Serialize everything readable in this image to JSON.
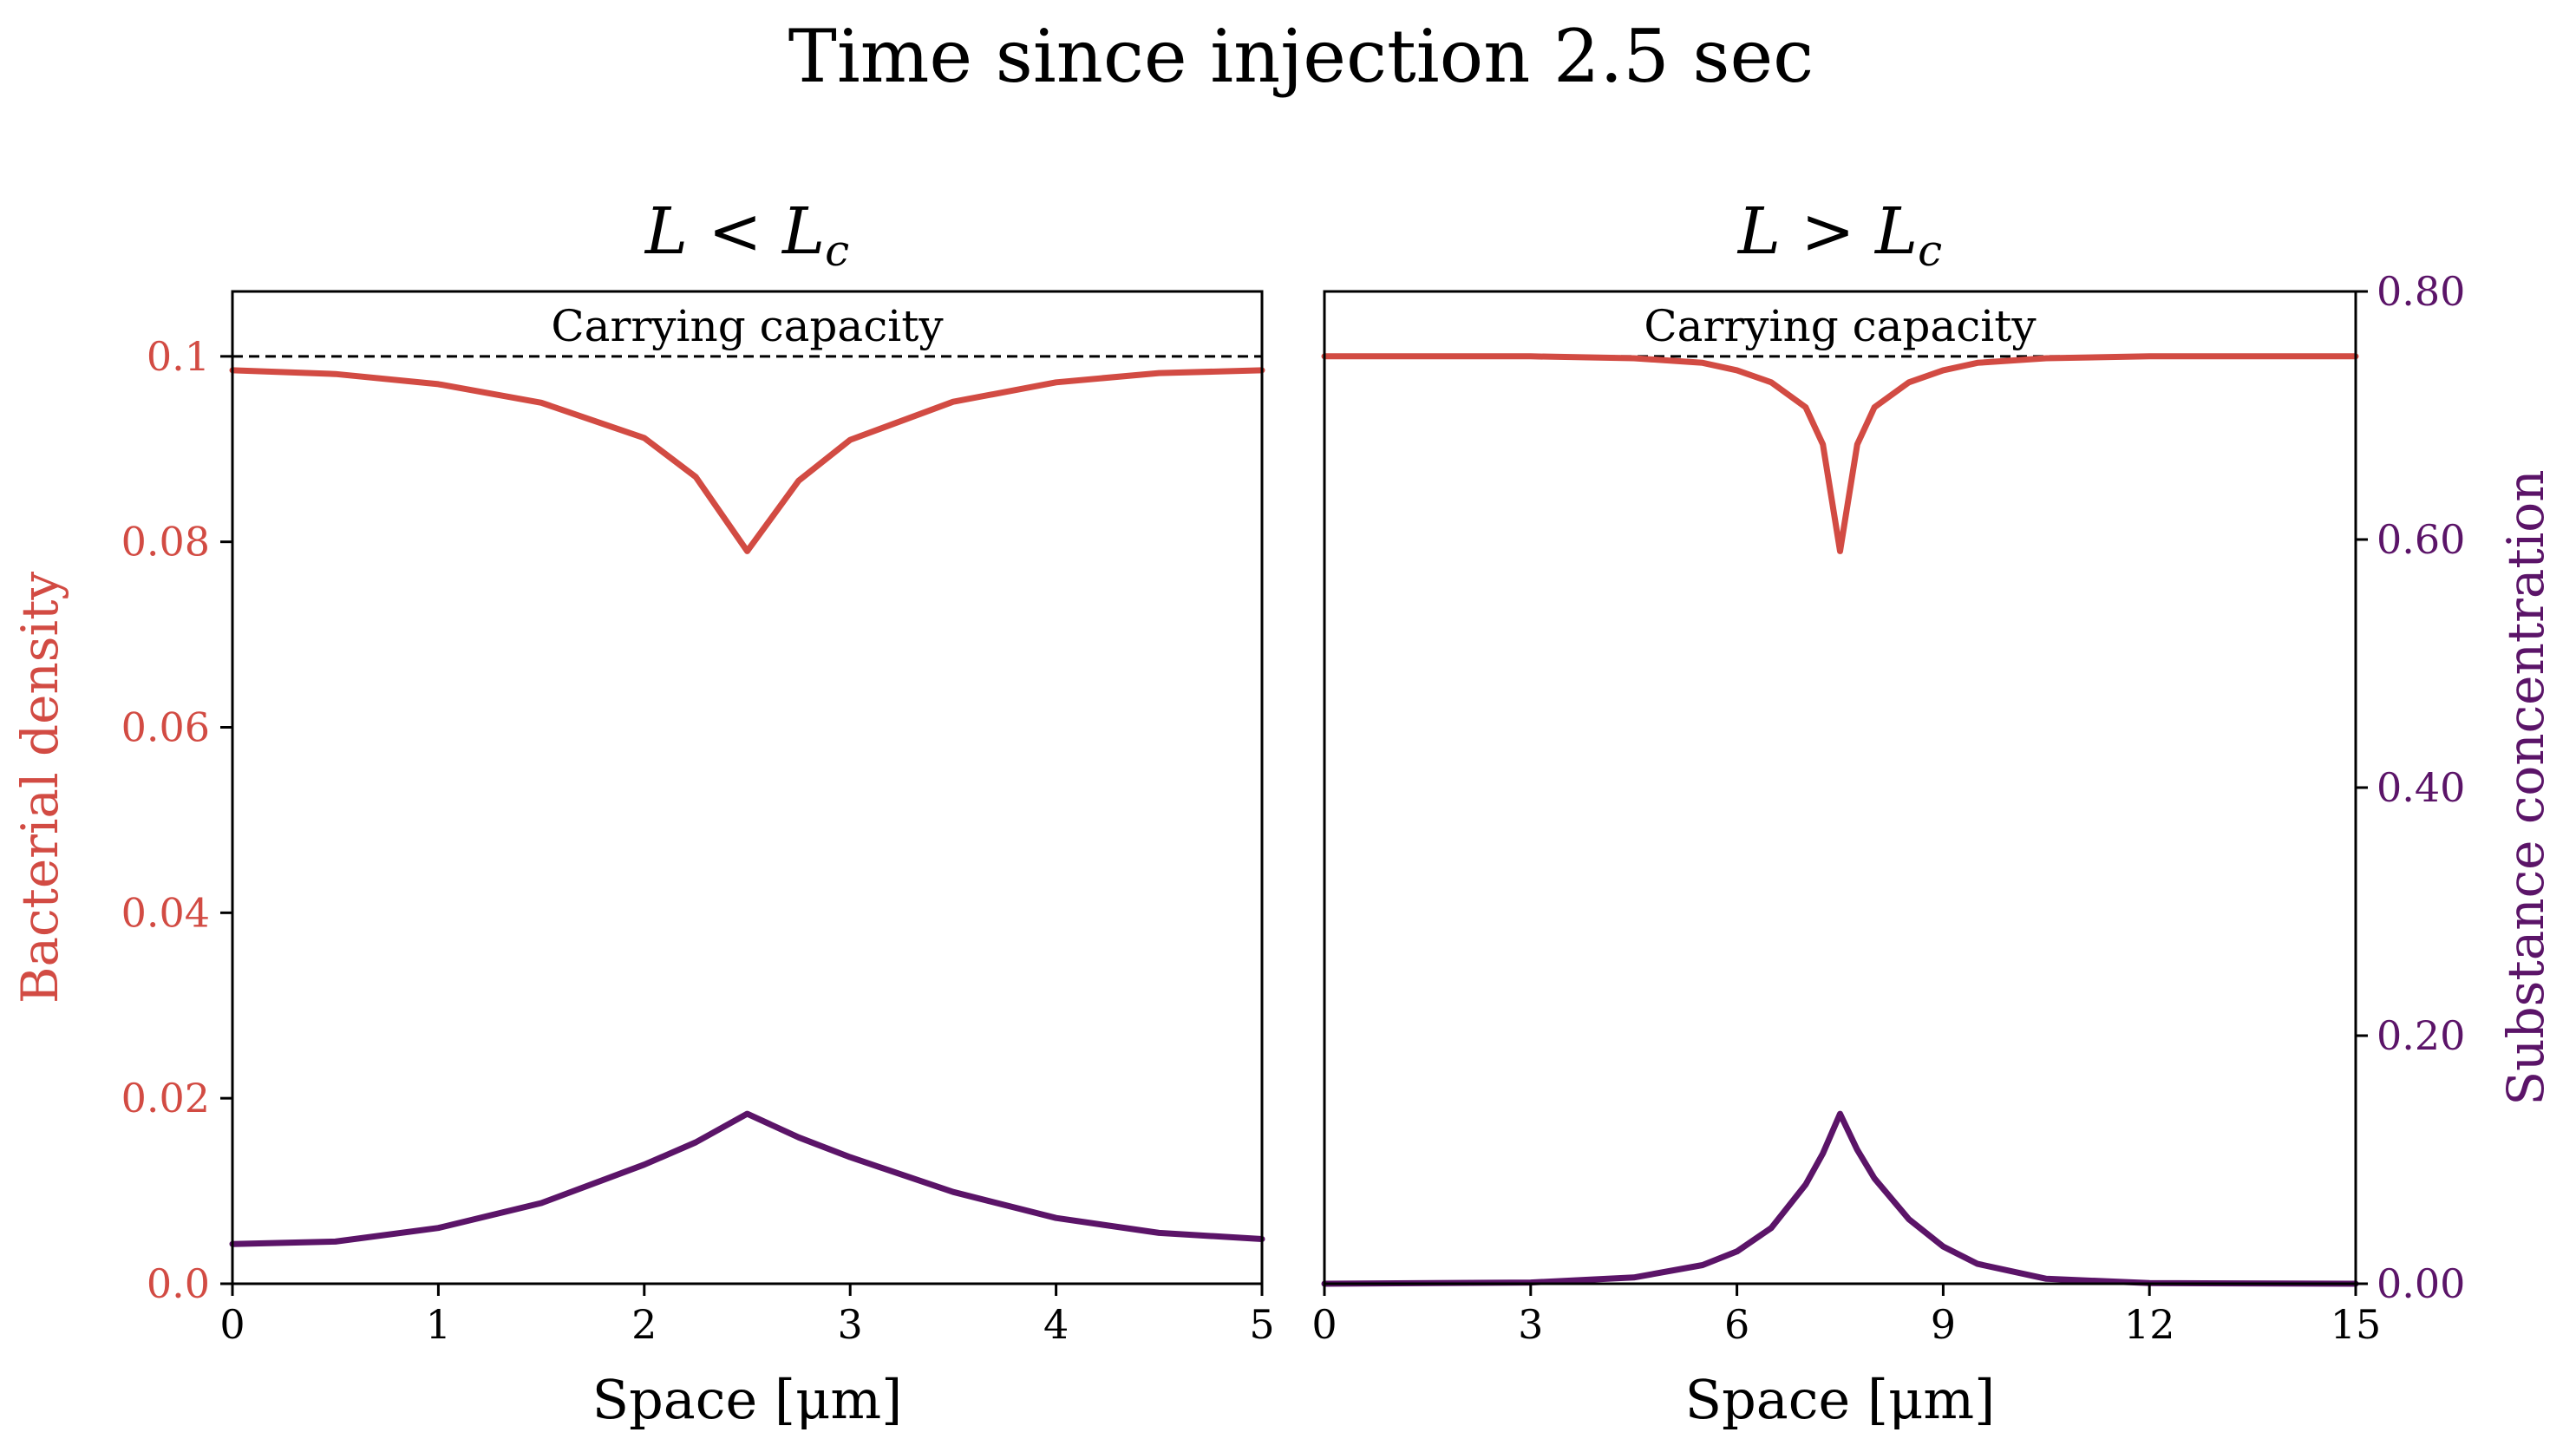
{
  "figure": {
    "title": "Time since injection 2.5 sec"
  },
  "colors": {
    "bacteria": "#d24b43",
    "substance": "#5b1468",
    "capacity_line": "#000000"
  },
  "chart_data": [
    {
      "type": "line",
      "title": "L < Lc",
      "title_main": "L < L",
      "title_sub": "c",
      "xlabel": "Space [μm]",
      "ylabel_left": "Bacterial density",
      "xlim": [
        0,
        5
      ],
      "ylim_left": [
        0,
        0.107
      ],
      "ylim_right": [
        0,
        0.8
      ],
      "x_ticks": [
        "0",
        "1",
        "2",
        "3",
        "4",
        "5"
      ],
      "x_tick_values": [
        0,
        1,
        2,
        3,
        4,
        5
      ],
      "y_left_ticks": [
        "0.0",
        "0.02",
        "0.04",
        "0.06",
        "0.08",
        "0.1"
      ],
      "y_left_tick_values": [
        0,
        0.02,
        0.04,
        0.06,
        0.08,
        0.1
      ],
      "annotation": "Carrying capacity",
      "carrying_capacity": 0.1,
      "series": [
        {
          "key": "bacteria",
          "axis": "left",
          "x": [
            0,
            0.5,
            1,
            1.5,
            2,
            2.25,
            2.5,
            2.75,
            3,
            3.5,
            4,
            4.5,
            5
          ],
          "y": [
            0.0985,
            0.0981,
            0.097,
            0.095,
            0.0912,
            0.087,
            0.079,
            0.0866,
            0.091,
            0.0951,
            0.0972,
            0.0982,
            0.0985
          ]
        },
        {
          "key": "substance",
          "axis": "right",
          "x": [
            0,
            0.5,
            1,
            1.5,
            2,
            2.25,
            2.5,
            2.75,
            3,
            3.5,
            4,
            4.5,
            5
          ],
          "y": [
            0.032,
            0.034,
            0.045,
            0.065,
            0.096,
            0.114,
            0.137,
            0.118,
            0.102,
            0.074,
            0.053,
            0.041,
            0.036
          ]
        }
      ]
    },
    {
      "type": "line",
      "title": "L > Lc",
      "title_main": "L > L",
      "title_sub": "c",
      "xlabel": "Space [μm]",
      "ylabel_right": "Substance concentration",
      "xlim": [
        0,
        15
      ],
      "ylim_left": [
        0,
        0.107
      ],
      "ylim_right": [
        0,
        0.8
      ],
      "x_ticks": [
        "0",
        "3",
        "6",
        "9",
        "12",
        "15"
      ],
      "x_tick_values": [
        0,
        3,
        6,
        9,
        12,
        15
      ],
      "y_right_ticks": [
        "0.00",
        "0.20",
        "0.40",
        "0.60",
        "0.80"
      ],
      "y_right_tick_values": [
        0,
        0.2,
        0.4,
        0.6,
        0.8
      ],
      "annotation": "Carrying capacity",
      "carrying_capacity": 0.1,
      "series": [
        {
          "key": "bacteria",
          "axis": "left",
          "x": [
            0,
            3,
            4.5,
            5.5,
            6,
            6.5,
            7,
            7.25,
            7.5,
            7.75,
            8,
            8.5,
            9,
            9.5,
            10.5,
            12,
            15
          ],
          "y": [
            0.1,
            0.1,
            0.0998,
            0.0993,
            0.0985,
            0.0972,
            0.0945,
            0.0905,
            0.079,
            0.0905,
            0.0945,
            0.0972,
            0.0985,
            0.0993,
            0.0998,
            0.1,
            0.1
          ]
        },
        {
          "key": "substance",
          "axis": "right",
          "x": [
            0,
            3,
            4.5,
            5.5,
            6,
            6.5,
            7,
            7.25,
            7.5,
            7.75,
            8,
            8.5,
            9,
            9.5,
            10.5,
            12,
            15
          ],
          "y": [
            0.0,
            0.001,
            0.005,
            0.015,
            0.026,
            0.045,
            0.08,
            0.105,
            0.137,
            0.108,
            0.085,
            0.052,
            0.03,
            0.016,
            0.004,
            0.0005,
            0.0
          ]
        }
      ]
    }
  ]
}
